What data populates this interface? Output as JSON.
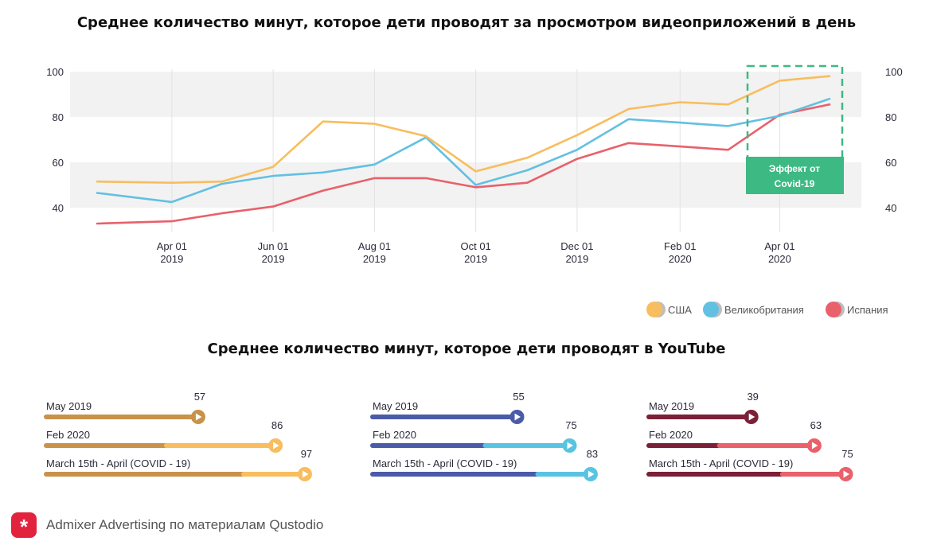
{
  "chart_data": [
    {
      "type": "line",
      "title": "Среднее количество минут, которое дети проводят за просмотром видеоприложений в день",
      "x": [
        "2019-02-15",
        "2019-04-01",
        "2019-05-01",
        "2019-06-01",
        "2019-07-01",
        "2019-08-01",
        "2019-09-01",
        "2019-10-01",
        "2019-11-01",
        "2019-12-01",
        "2020-01-01",
        "2020-02-01",
        "2020-03-01",
        "2020-04-01",
        "2020-05-01"
      ],
      "x_tick_labels": [
        [
          "Apr 01",
          "2019"
        ],
        [
          "Jun 01",
          "2019"
        ],
        [
          "Aug 01",
          "2019"
        ],
        [
          "Oct 01",
          "2019"
        ],
        [
          "Dec 01",
          "2019"
        ],
        [
          "Feb 01",
          "2020"
        ],
        [
          "Apr 01",
          "2020"
        ]
      ],
      "ylim": [
        33,
        100
      ],
      "y_ticks": [
        40,
        60,
        80,
        100
      ],
      "right_axis": true,
      "grid": "horizontal bands",
      "legend_position": "bottom-right",
      "series": [
        {
          "name": "США",
          "color": "#f8bd5e",
          "values": [
            51.5,
            51,
            51.5,
            58,
            78,
            77,
            71.5,
            56,
            62,
            72,
            83.5,
            86.5,
            85.5,
            96,
            98
          ]
        },
        {
          "name": "Великобритания",
          "color": "#62c0e2",
          "values": [
            46.5,
            42.5,
            50.5,
            54,
            55.5,
            59,
            71,
            50,
            56.5,
            65.5,
            79,
            77.5,
            76,
            80.5,
            88
          ]
        },
        {
          "name": "Испания",
          "color": "#e8616b",
          "values": [
            33,
            34,
            37.5,
            40.5,
            47.5,
            53,
            53,
            49,
            51,
            61.5,
            68.5,
            67,
            65.5,
            81,
            85.5
          ]
        }
      ],
      "annotation": {
        "text_line1": "Эффект от",
        "text_line2": "Covid-19",
        "color": "#3db984"
      }
    },
    {
      "type": "bar",
      "orientation": "horizontal",
      "title": "Среднее количество минут, которое дети проводят в YouTube",
      "categories": [
        "May 2019",
        "Feb 2020",
        "March 15th - April (COVID - 19)"
      ],
      "groups": [
        {
          "base_color": "#c8924a",
          "accent_color": "#f8bd5e",
          "values": [
            57,
            86,
            97
          ]
        },
        {
          "base_color": "#4a5ba8",
          "accent_color": "#58c4e2",
          "values": [
            55,
            75,
            83
          ]
        },
        {
          "base_color": "#7a2038",
          "accent_color": "#e8616b",
          "values": [
            39,
            63,
            75
          ]
        }
      ]
    }
  ],
  "footer": {
    "logo": "*",
    "text": "Admixer Advertising по материалам Qustodio"
  }
}
